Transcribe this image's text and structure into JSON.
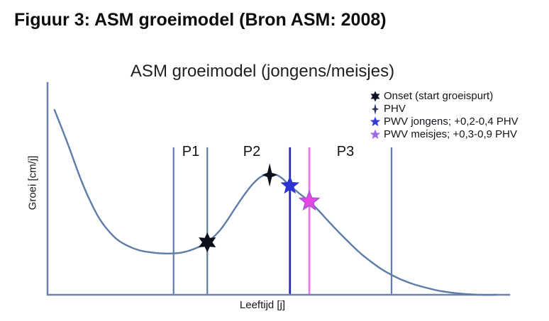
{
  "figure_caption": "Figuur 3: ASM groeimodel (Bron ASM: 2008)",
  "chart_data": {
    "type": "line",
    "title": "ASM groeimodel (jongens/meisjes)",
    "xlabel": "Leeftijd [j]",
    "ylabel": "Groei [cm/j]",
    "x_range": [
      0,
      10
    ],
    "y_range": [
      0,
      10
    ],
    "grid": false,
    "axis_ticks": "none (schematic, unitless axes)",
    "legend_position": "top-right",
    "colors": {
      "curve": "#5d7ca8",
      "axis": "#6b85a9",
      "phase_line": "#5d7ca8",
      "pwv_jongens_line": "#2b2ba8",
      "pwv_meisjes_line": "#e87ae8",
      "onset_marker": "#0c0f1c",
      "phv_marker": "#0c0f1c",
      "pwv_jongens_marker": "#2c33d4",
      "pwv_meisjes_marker": "#e746e2",
      "pwv_meisjes_marker_stroke": "#a855d8"
    },
    "series": [
      {
        "name": "groeisnelheid (growth velocity curve)",
        "points": [
          [
            0.15,
            8.73
          ],
          [
            0.29,
            7.97
          ],
          [
            0.45,
            7.07
          ],
          [
            0.6,
            6.17
          ],
          [
            0.77,
            5.2
          ],
          [
            0.94,
            4.37
          ],
          [
            1.12,
            3.63
          ],
          [
            1.31,
            3.07
          ],
          [
            1.51,
            2.63
          ],
          [
            1.74,
            2.33
          ],
          [
            1.98,
            2.13
          ],
          [
            2.23,
            2.03
          ],
          [
            2.47,
            1.98
          ],
          [
            2.72,
            1.98
          ],
          [
            2.93,
            2.03
          ],
          [
            3.15,
            2.17
          ],
          [
            3.35,
            2.37
          ],
          [
            3.53,
            2.63
          ],
          [
            3.72,
            3.03
          ],
          [
            3.89,
            3.53
          ],
          [
            4.07,
            4.13
          ],
          [
            4.26,
            4.73
          ],
          [
            4.44,
            5.23
          ],
          [
            4.61,
            5.57
          ],
          [
            4.76,
            5.7
          ],
          [
            4.92,
            5.7
          ],
          [
            5.07,
            5.53
          ],
          [
            5.25,
            5.17
          ],
          [
            5.47,
            4.77
          ],
          [
            5.67,
            4.43
          ],
          [
            5.87,
            4.0
          ],
          [
            6.08,
            3.5
          ],
          [
            6.31,
            2.97
          ],
          [
            6.54,
            2.47
          ],
          [
            6.77,
            2.0
          ],
          [
            7.0,
            1.6
          ],
          [
            7.24,
            1.23
          ],
          [
            7.45,
            0.97
          ],
          [
            7.68,
            0.73
          ],
          [
            7.93,
            0.53
          ],
          [
            8.19,
            0.37
          ],
          [
            8.46,
            0.23
          ],
          [
            8.76,
            0.13
          ],
          [
            9.05,
            0.07
          ],
          [
            9.39,
            0.03
          ],
          [
            9.72,
            0.03
          ]
        ]
      }
    ],
    "phase_lines": [
      {
        "name": "p1-start-line",
        "x": 2.73,
        "y_top": 6.97,
        "y_bottom": 0.07,
        "color": "#5d7ca8",
        "width": 2.2
      },
      {
        "name": "p1-end-onset-line",
        "x": 3.46,
        "y_top": 6.97,
        "y_bottom": 0.07,
        "color": "#5d7ca8",
        "width": 2.2
      },
      {
        "name": "pwv-jongens-line",
        "x": 5.25,
        "y_top": 6.97,
        "y_bottom": 0.07,
        "color": "#2b2ba8",
        "width": 2.8
      },
      {
        "name": "pwv-meisjes-line",
        "x": 5.67,
        "y_top": 6.97,
        "y_bottom": 0.07,
        "color": "#e87ae8",
        "width": 2.8
      },
      {
        "name": "p3-end-line",
        "x": 7.45,
        "y_top": 6.97,
        "y_bottom": 0.07,
        "color": "#5d7ca8",
        "width": 2.2
      }
    ],
    "phases": [
      {
        "label": "P1",
        "x_center": 3.09
      },
      {
        "label": "P2",
        "x_center": 4.42
      },
      {
        "label": "P3",
        "x_center": 6.45
      }
    ],
    "markers": [
      {
        "name": "onset",
        "shape": "star6",
        "x": 3.46,
        "y": 2.5,
        "color": "#0c0f1c",
        "size": 14
      },
      {
        "name": "phv",
        "shape": "star4",
        "x": 4.81,
        "y": 5.67,
        "color": "#0c0f1c",
        "size": 15
      },
      {
        "name": "pwv-jongens",
        "shape": "star5",
        "x": 5.25,
        "y": 5.17,
        "color": "#2c33d4",
        "size": 14
      },
      {
        "name": "pwv-meisjes",
        "shape": "star5",
        "x": 5.67,
        "y": 4.43,
        "color": "#e746e2",
        "stroke": "#a855d8",
        "size": 14
      }
    ],
    "legend": {
      "items": [
        {
          "label": "Onset (start groeispurt)",
          "marker": "star6",
          "color": "#0e1226"
        },
        {
          "label": "PHV",
          "marker": "star4",
          "color": "#2a3560"
        },
        {
          "label": "PWV jongens; +0,2-0,4 PHV",
          "marker": "star5",
          "color": "#2f3cd8"
        },
        {
          "label": "PWV meisjes; +0,3-0,9 PHV",
          "marker": "star5",
          "color": "#9c6ce4"
        }
      ]
    }
  }
}
